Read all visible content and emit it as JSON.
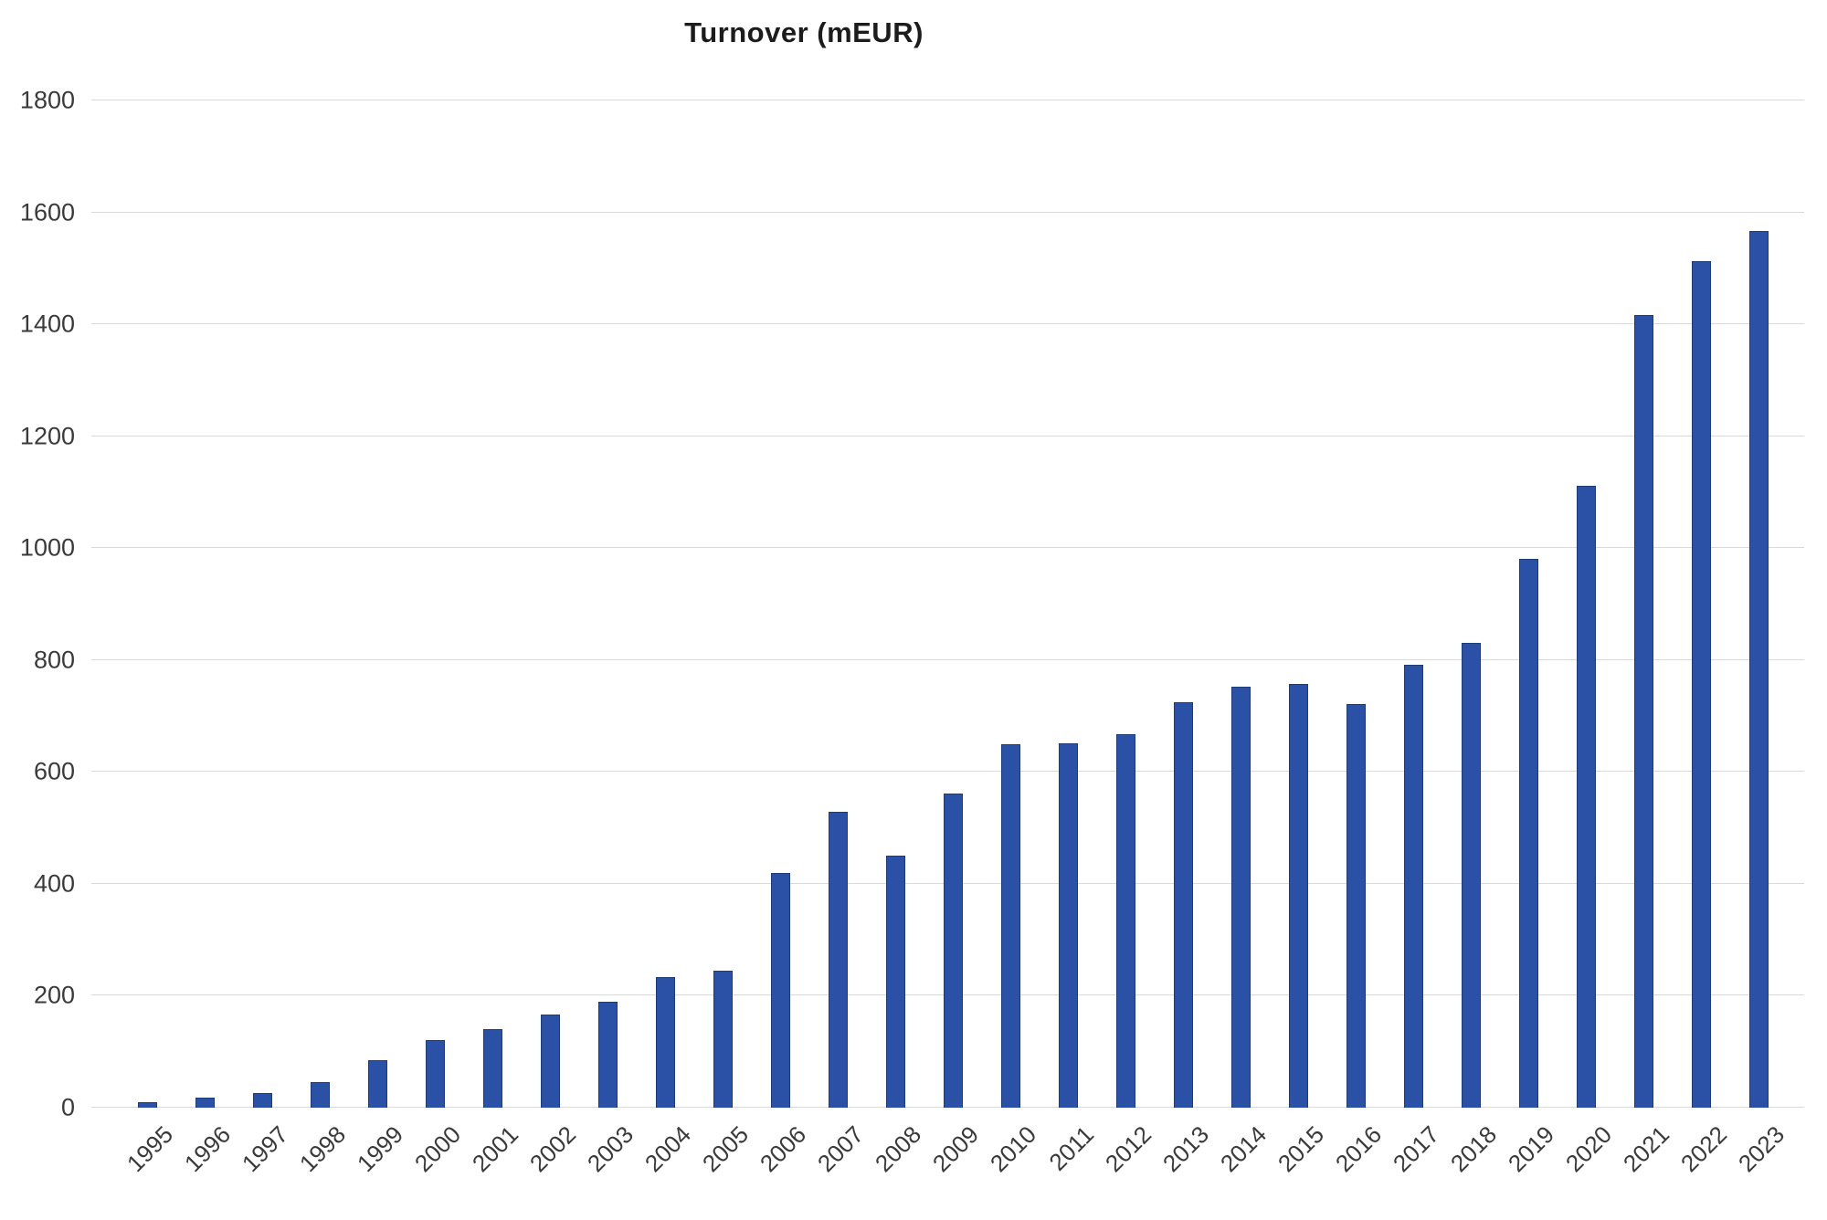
{
  "chart_data": {
    "type": "bar",
    "title": "Turnover (mEUR)",
    "series_name": "Turnover",
    "categories": [
      "1995",
      "1996",
      "1997",
      "1998",
      "1999",
      "2000",
      "2001",
      "2002",
      "2003",
      "2004",
      "2005",
      "2006",
      "2007",
      "2008",
      "2009",
      "2010",
      "2011",
      "2012",
      "2013",
      "2014",
      "2015",
      "2016",
      "2017",
      "2018",
      "2019",
      "2020",
      "2021",
      "2022",
      "2023"
    ],
    "values": [
      10,
      18,
      26,
      45,
      85,
      120,
      141,
      167,
      190,
      233,
      245,
      420,
      529,
      451,
      562,
      650,
      651,
      667,
      725,
      753,
      758,
      722,
      792,
      831,
      980,
      1112,
      1416,
      1512,
      1567
    ],
    "xlabel": "",
    "ylabel": "",
    "ylim": [
      0,
      1800
    ],
    "y_ticks": [
      0,
      200,
      400,
      600,
      800,
      1000,
      1200,
      1400,
      1600,
      1800
    ],
    "grid": true,
    "legend": false,
    "colors": {
      "bar_fill": "#2a51a5",
      "bar_border": "#1d3b78",
      "gridline": "#d9d9d9",
      "axis_text": "#3a3a3a",
      "title_text": "#1c1c1c",
      "background": "#ffffff"
    }
  }
}
